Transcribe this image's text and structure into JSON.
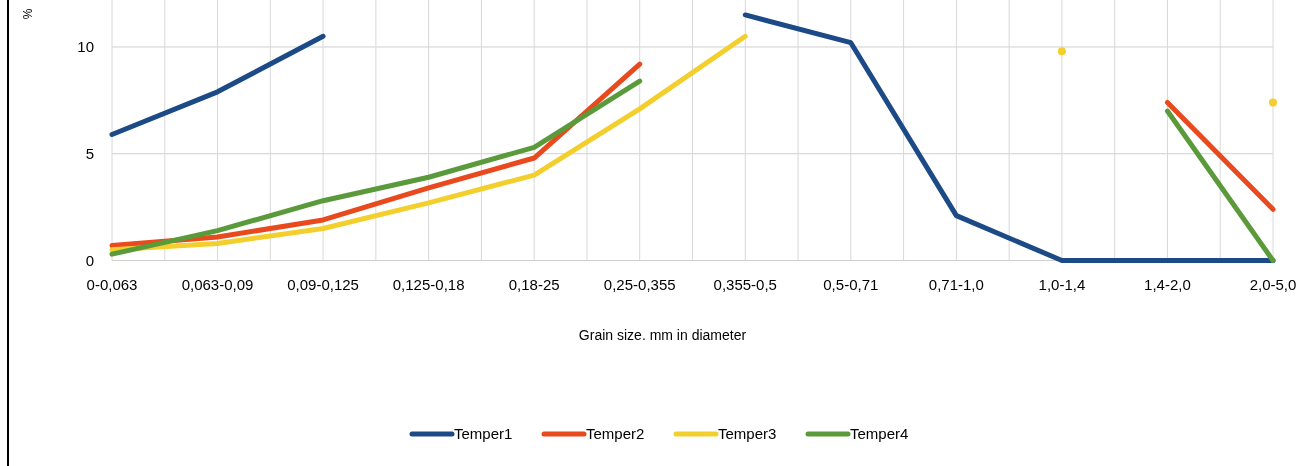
{
  "chart_data": {
    "type": "line",
    "xlabel": "Grain size. mm in diameter",
    "ylabel": "%",
    "categories": [
      "0-0,063",
      "0,063-0,09",
      "0,09-0,125",
      "0,125-0,18",
      "0,18-25",
      "0,25-0,355",
      "0,355-0,5",
      "0,5-0,71",
      "0,71-1,0",
      "1,0-1,4",
      "1,4-2,0",
      "2,0-5,0"
    ],
    "series": [
      {
        "name": "Temper1",
        "color": "#1b4a86",
        "values": [
          5.9,
          7.9,
          10.5,
          null,
          null,
          null,
          11.5,
          10.2,
          2.1,
          0,
          0,
          0
        ]
      },
      {
        "name": "Temper2",
        "color": "#e8491d",
        "values": [
          0.7,
          1.1,
          1.9,
          3.4,
          4.8,
          9.2,
          null,
          null,
          null,
          null,
          7.4,
          2.4
        ]
      },
      {
        "name": "Temper3",
        "color": "#f3cf2d",
        "values": [
          0.5,
          0.8,
          1.5,
          2.7,
          4.0,
          7.1,
          10.5,
          null,
          null,
          9.8,
          null,
          7.4
        ]
      },
      {
        "name": "Temper4",
        "color": "#5a9a3a",
        "values": [
          0.3,
          1.4,
          2.8,
          3.9,
          5.3,
          8.4,
          null,
          null,
          null,
          null,
          7.0,
          0
        ]
      }
    ],
    "ylim": [
      0,
      12.2
    ],
    "yticks": [
      0,
      5,
      10
    ],
    "grid": true,
    "legend": "bottom",
    "marker": "none",
    "line_style": "solid"
  }
}
